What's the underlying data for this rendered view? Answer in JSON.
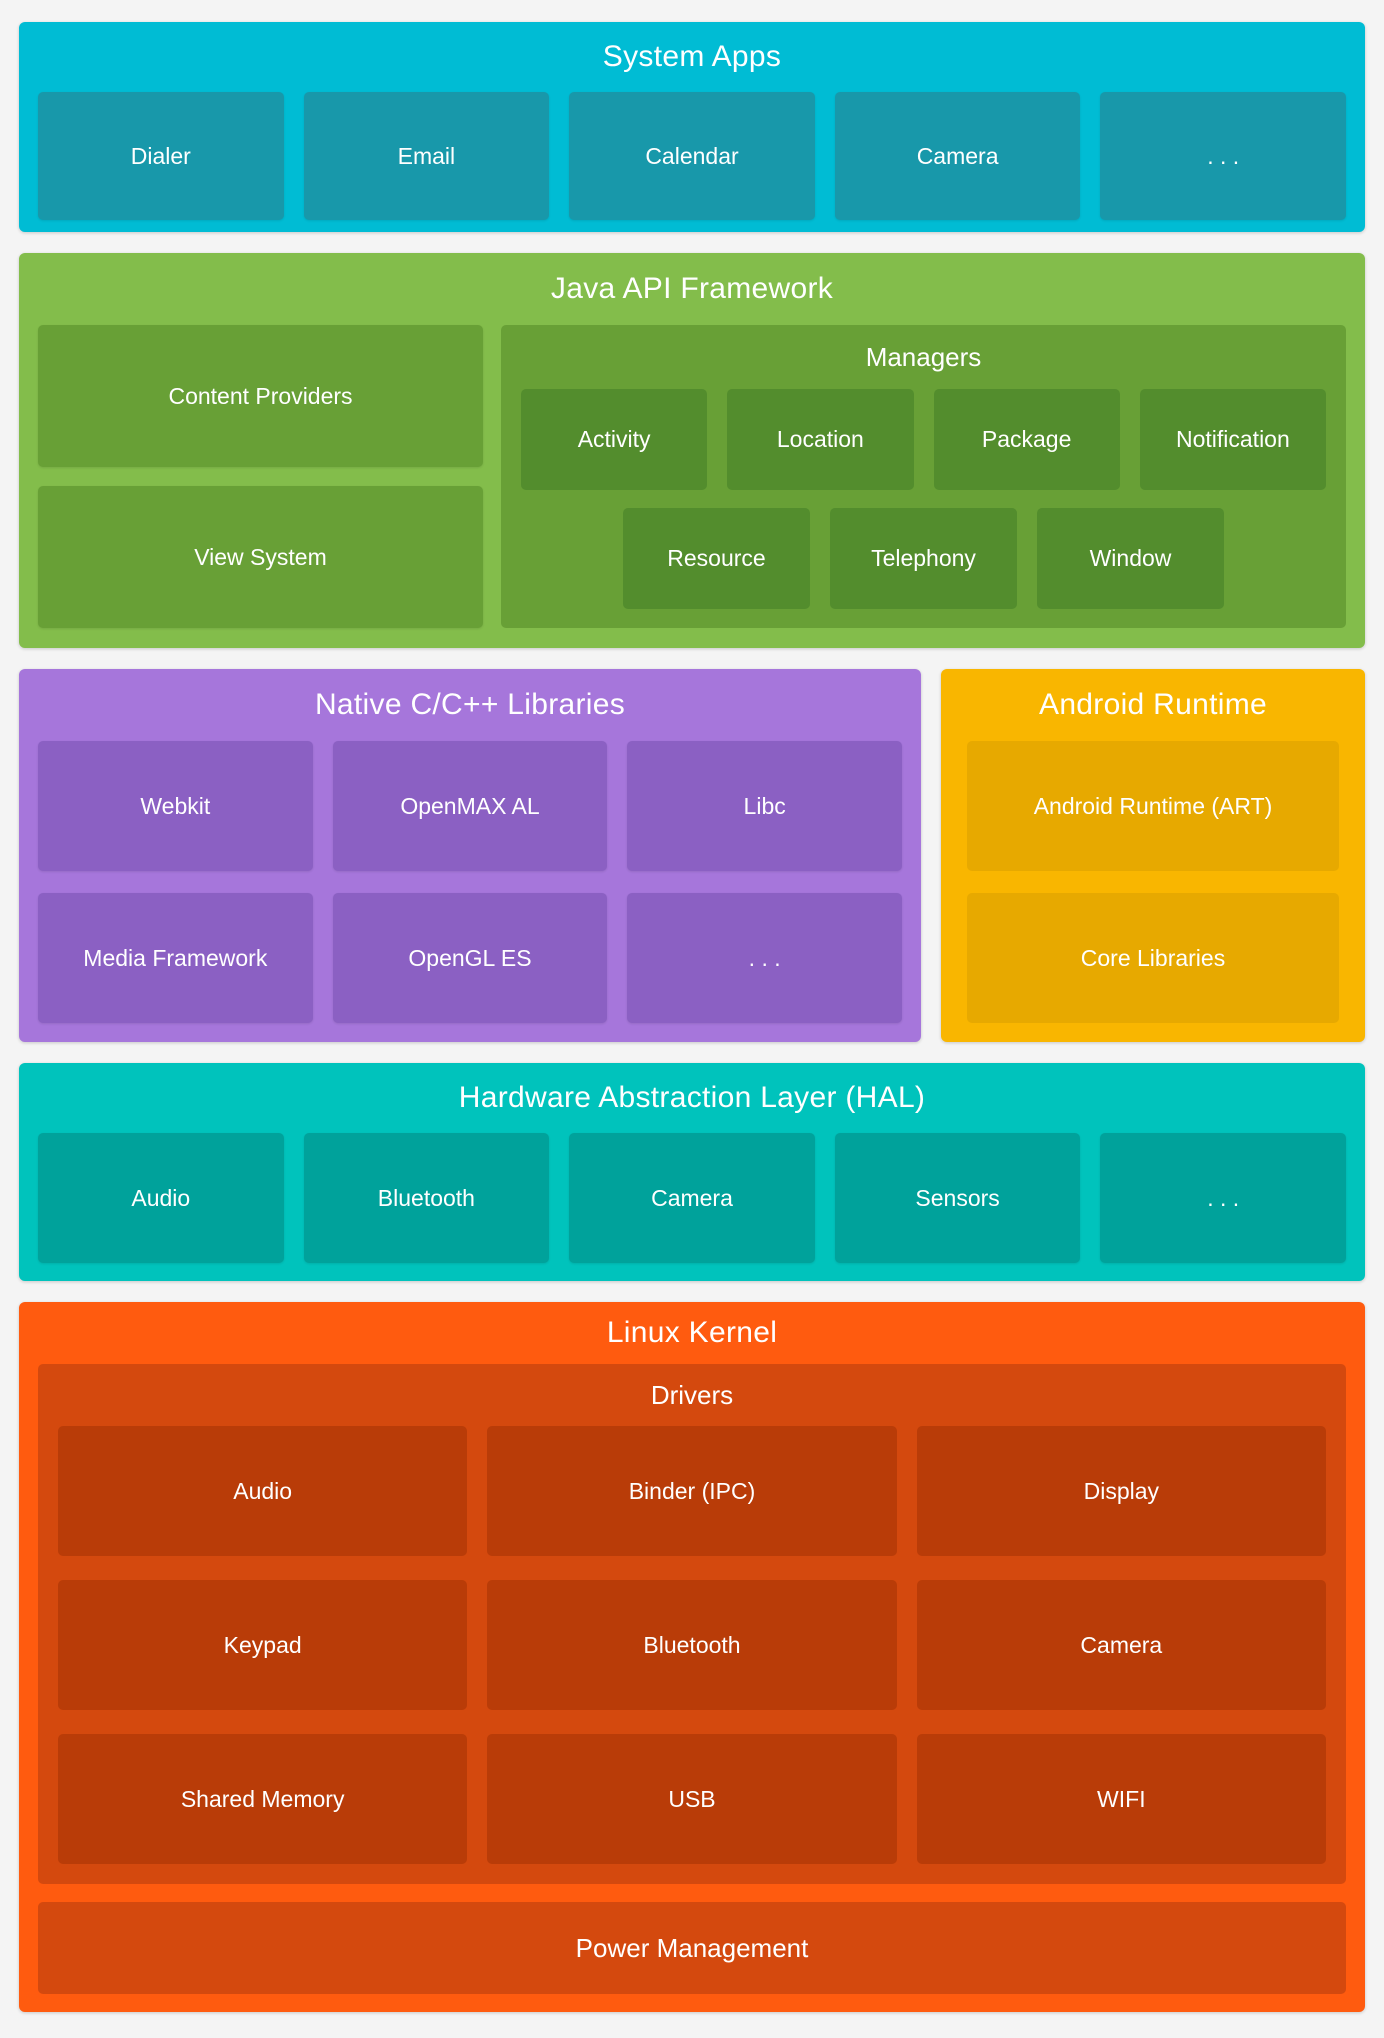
{
  "colors": {
    "page_bg": "#f4f4f4",
    "text": "#ffffff",
    "system_apps": {
      "band": "#00bcd4",
      "box": "#1898aa"
    },
    "java": {
      "band": "#83bd4b",
      "box": "#68a036",
      "subbox": "#538d2d"
    },
    "native": {
      "band": "#a676db",
      "box": "#8b60c3"
    },
    "runtime": {
      "band": "#f9b600",
      "box": "#e7a900"
    },
    "hal": {
      "band": "#00c3bc",
      "box": "#00a29b"
    },
    "kernel": {
      "band": "#ff5b0f",
      "container": "#d4490e",
      "box": "#b93c08"
    }
  },
  "layers": {
    "system_apps": {
      "title": "System Apps",
      "items": [
        "Dialer",
        "Email",
        "Calendar",
        "Camera",
        ". . ."
      ]
    },
    "java_api": {
      "title": "Java API Framework",
      "left_items": [
        "Content Providers",
        "View System"
      ],
      "managers": {
        "title": "Managers",
        "row1": [
          "Activity",
          "Location",
          "Package",
          "Notification"
        ],
        "row2": [
          "Resource",
          "Telephony",
          "Window"
        ]
      }
    },
    "native_libs": {
      "title": "Native C/C++ Libraries",
      "row1": [
        "Webkit",
        "OpenMAX AL",
        "Libc"
      ],
      "row2": [
        "Media Framework",
        "OpenGL ES",
        ". . ."
      ]
    },
    "android_runtime": {
      "title": "Android Runtime",
      "items": [
        "Android Runtime (ART)",
        "Core Libraries"
      ]
    },
    "hal": {
      "title": "Hardware Abstraction Layer (HAL)",
      "items": [
        "Audio",
        "Bluetooth",
        "Camera",
        "Sensors",
        ". . ."
      ]
    },
    "linux_kernel": {
      "title": "Linux Kernel",
      "drivers": {
        "title": "Drivers",
        "row1": [
          "Audio",
          "Binder (IPC)",
          "Display"
        ],
        "row2": [
          "Keypad",
          "Bluetooth",
          "Camera"
        ],
        "row3": [
          "Shared Memory",
          "USB",
          "WIFI"
        ]
      },
      "power": "Power Management"
    }
  }
}
